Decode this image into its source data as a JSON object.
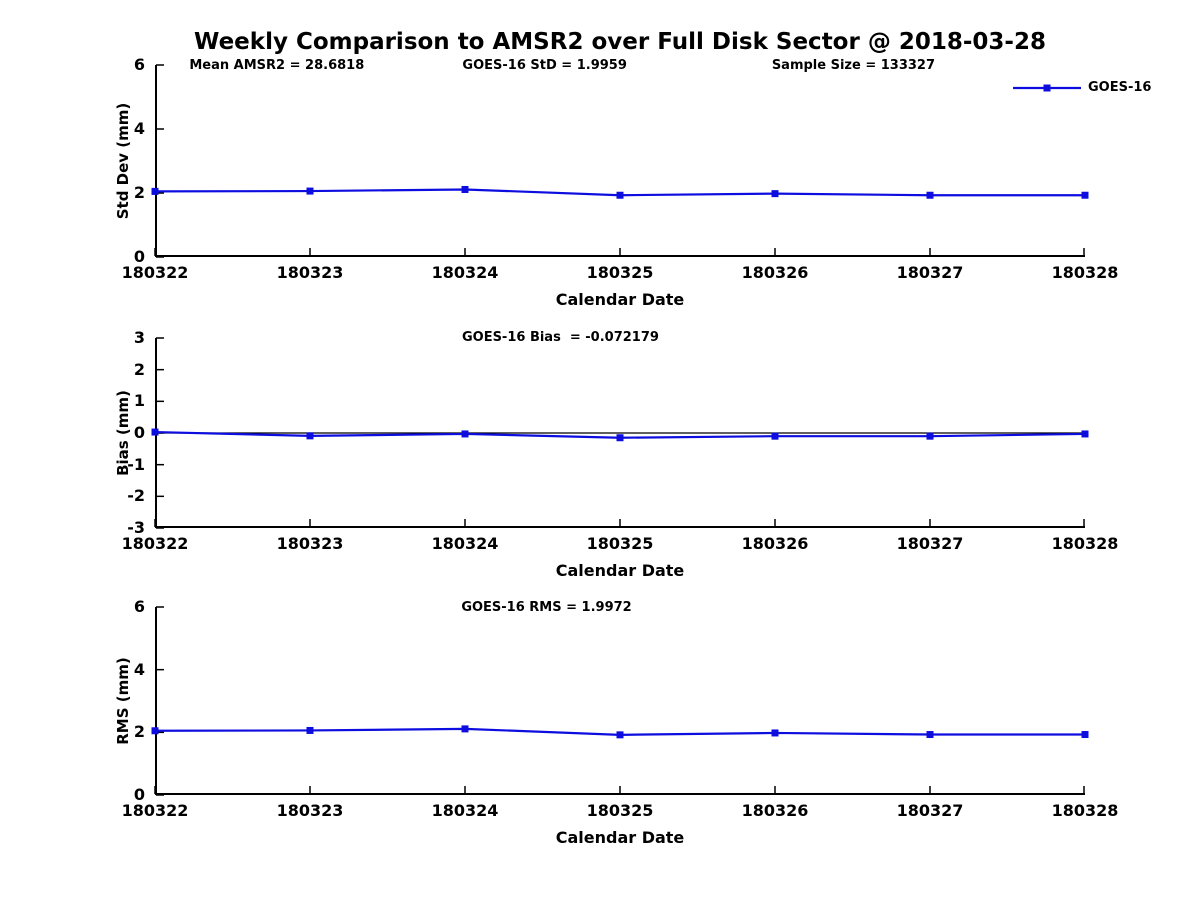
{
  "title": "Weekly Comparison to AMSR2 over Full Disk Sector @ 2018-03-28",
  "legend": {
    "label": "GOES-16"
  },
  "colors": {
    "series": "#0d0de0",
    "axis": "#000000",
    "background": "#ffffff"
  },
  "x_axis": {
    "label": "Calendar Date",
    "categories": [
      "180322",
      "180323",
      "180324",
      "180325",
      "180326",
      "180327",
      "180328"
    ]
  },
  "chart_data": [
    {
      "type": "line",
      "name": "std-dev",
      "ylabel": "Std Dev (mm)",
      "xlabel": "Calendar Date",
      "ylim": [
        0,
        6
      ],
      "yticks": [
        0,
        2,
        4,
        6
      ],
      "categories": [
        "180322",
        "180323",
        "180324",
        "180325",
        "180326",
        "180327",
        "180328"
      ],
      "annotations": [
        "Mean AMSR2 = 28.6818",
        "GOES-16 StD = 1.9959",
        "Sample Size = 133327"
      ],
      "zero_line": false,
      "legend_position": "top-right",
      "series": [
        {
          "name": "GOES-16",
          "values": [
            2.05,
            2.06,
            2.11,
            1.93,
            1.98,
            1.93,
            1.93
          ]
        }
      ]
    },
    {
      "type": "line",
      "name": "bias",
      "ylabel": "Bias (mm)",
      "xlabel": "Calendar Date",
      "ylim": [
        -3,
        3
      ],
      "yticks": [
        -3,
        -2,
        -1,
        0,
        1,
        2,
        3
      ],
      "categories": [
        "180322",
        "180323",
        "180324",
        "180325",
        "180326",
        "180327",
        "180328"
      ],
      "annotations": [
        "GOES-16 Bias  = -0.072179"
      ],
      "zero_line": true,
      "series": [
        {
          "name": "GOES-16",
          "values": [
            0.03,
            -0.09,
            -0.03,
            -0.15,
            -0.1,
            -0.1,
            -0.03
          ]
        }
      ]
    },
    {
      "type": "line",
      "name": "rms",
      "ylabel": "RMS (mm)",
      "xlabel": "Calendar Date",
      "ylim": [
        0,
        6
      ],
      "yticks": [
        0,
        2,
        4,
        6
      ],
      "categories": [
        "180322",
        "180323",
        "180324",
        "180325",
        "180326",
        "180327",
        "180328"
      ],
      "annotations": [
        "GOES-16 RMS = 1.9972"
      ],
      "zero_line": false,
      "series": [
        {
          "name": "GOES-16",
          "values": [
            2.05,
            2.06,
            2.11,
            1.92,
            1.98,
            1.93,
            1.93
          ]
        }
      ]
    }
  ]
}
